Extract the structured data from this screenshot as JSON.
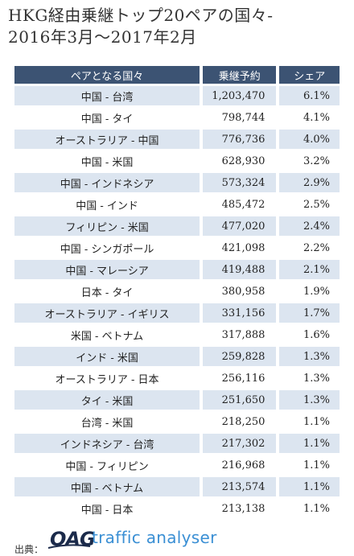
{
  "title_line1": "HKG経由乗継トップ20ペアの国々-",
  "title_line2": "2016年3月～2017年2月",
  "chart_data": {
    "type": "table",
    "columns": [
      "ペアとなる国々",
      "乗継予約",
      "シェア"
    ],
    "rows": [
      [
        "中国 - 台湾",
        "1,203,470",
        "6.1%"
      ],
      [
        "中国 - タイ",
        "798,744",
        "4.1%"
      ],
      [
        "オーストラリア - 中国",
        "776,736",
        "4.0%"
      ],
      [
        "中国 - 米国",
        "628,930",
        "3.2%"
      ],
      [
        "中国 - インドネシア",
        "573,324",
        "2.9%"
      ],
      [
        "中国 - インド",
        "485,472",
        "2.5%"
      ],
      [
        "フィリピン - 米国",
        "477,020",
        "2.4%"
      ],
      [
        "中国 - シンガポール",
        "421,098",
        "2.2%"
      ],
      [
        "中国 - マレーシア",
        "419,488",
        "2.1%"
      ],
      [
        "日本 - タイ",
        "380,958",
        "1.9%"
      ],
      [
        "オーストラリア - イギリス",
        "331,156",
        "1.7%"
      ],
      [
        "米国 - ベトナム",
        "317,888",
        "1.6%"
      ],
      [
        "インド - 米国",
        "259,828",
        "1.3%"
      ],
      [
        "オーストラリア - 日本",
        "256,116",
        "1.3%"
      ],
      [
        "タイ - 米国",
        "251,650",
        "1.3%"
      ],
      [
        "台湾 - 米国",
        "218,250",
        "1.1%"
      ],
      [
        "インドネシア - 台湾",
        "217,302",
        "1.1%"
      ],
      [
        "中国 - フィリピン",
        "216,968",
        "1.1%"
      ],
      [
        "中国 - ベトナム",
        "213,574",
        "1.1%"
      ],
      [
        "中国 - 日本",
        "213,138",
        "1.1%"
      ]
    ],
    "colors": {
      "header": "#3c5373",
      "stripe": "#dce5f0"
    }
  },
  "source": {
    "label": "出典：",
    "logo_oag": "OAG",
    "logo_text": "traffic analyser"
  }
}
